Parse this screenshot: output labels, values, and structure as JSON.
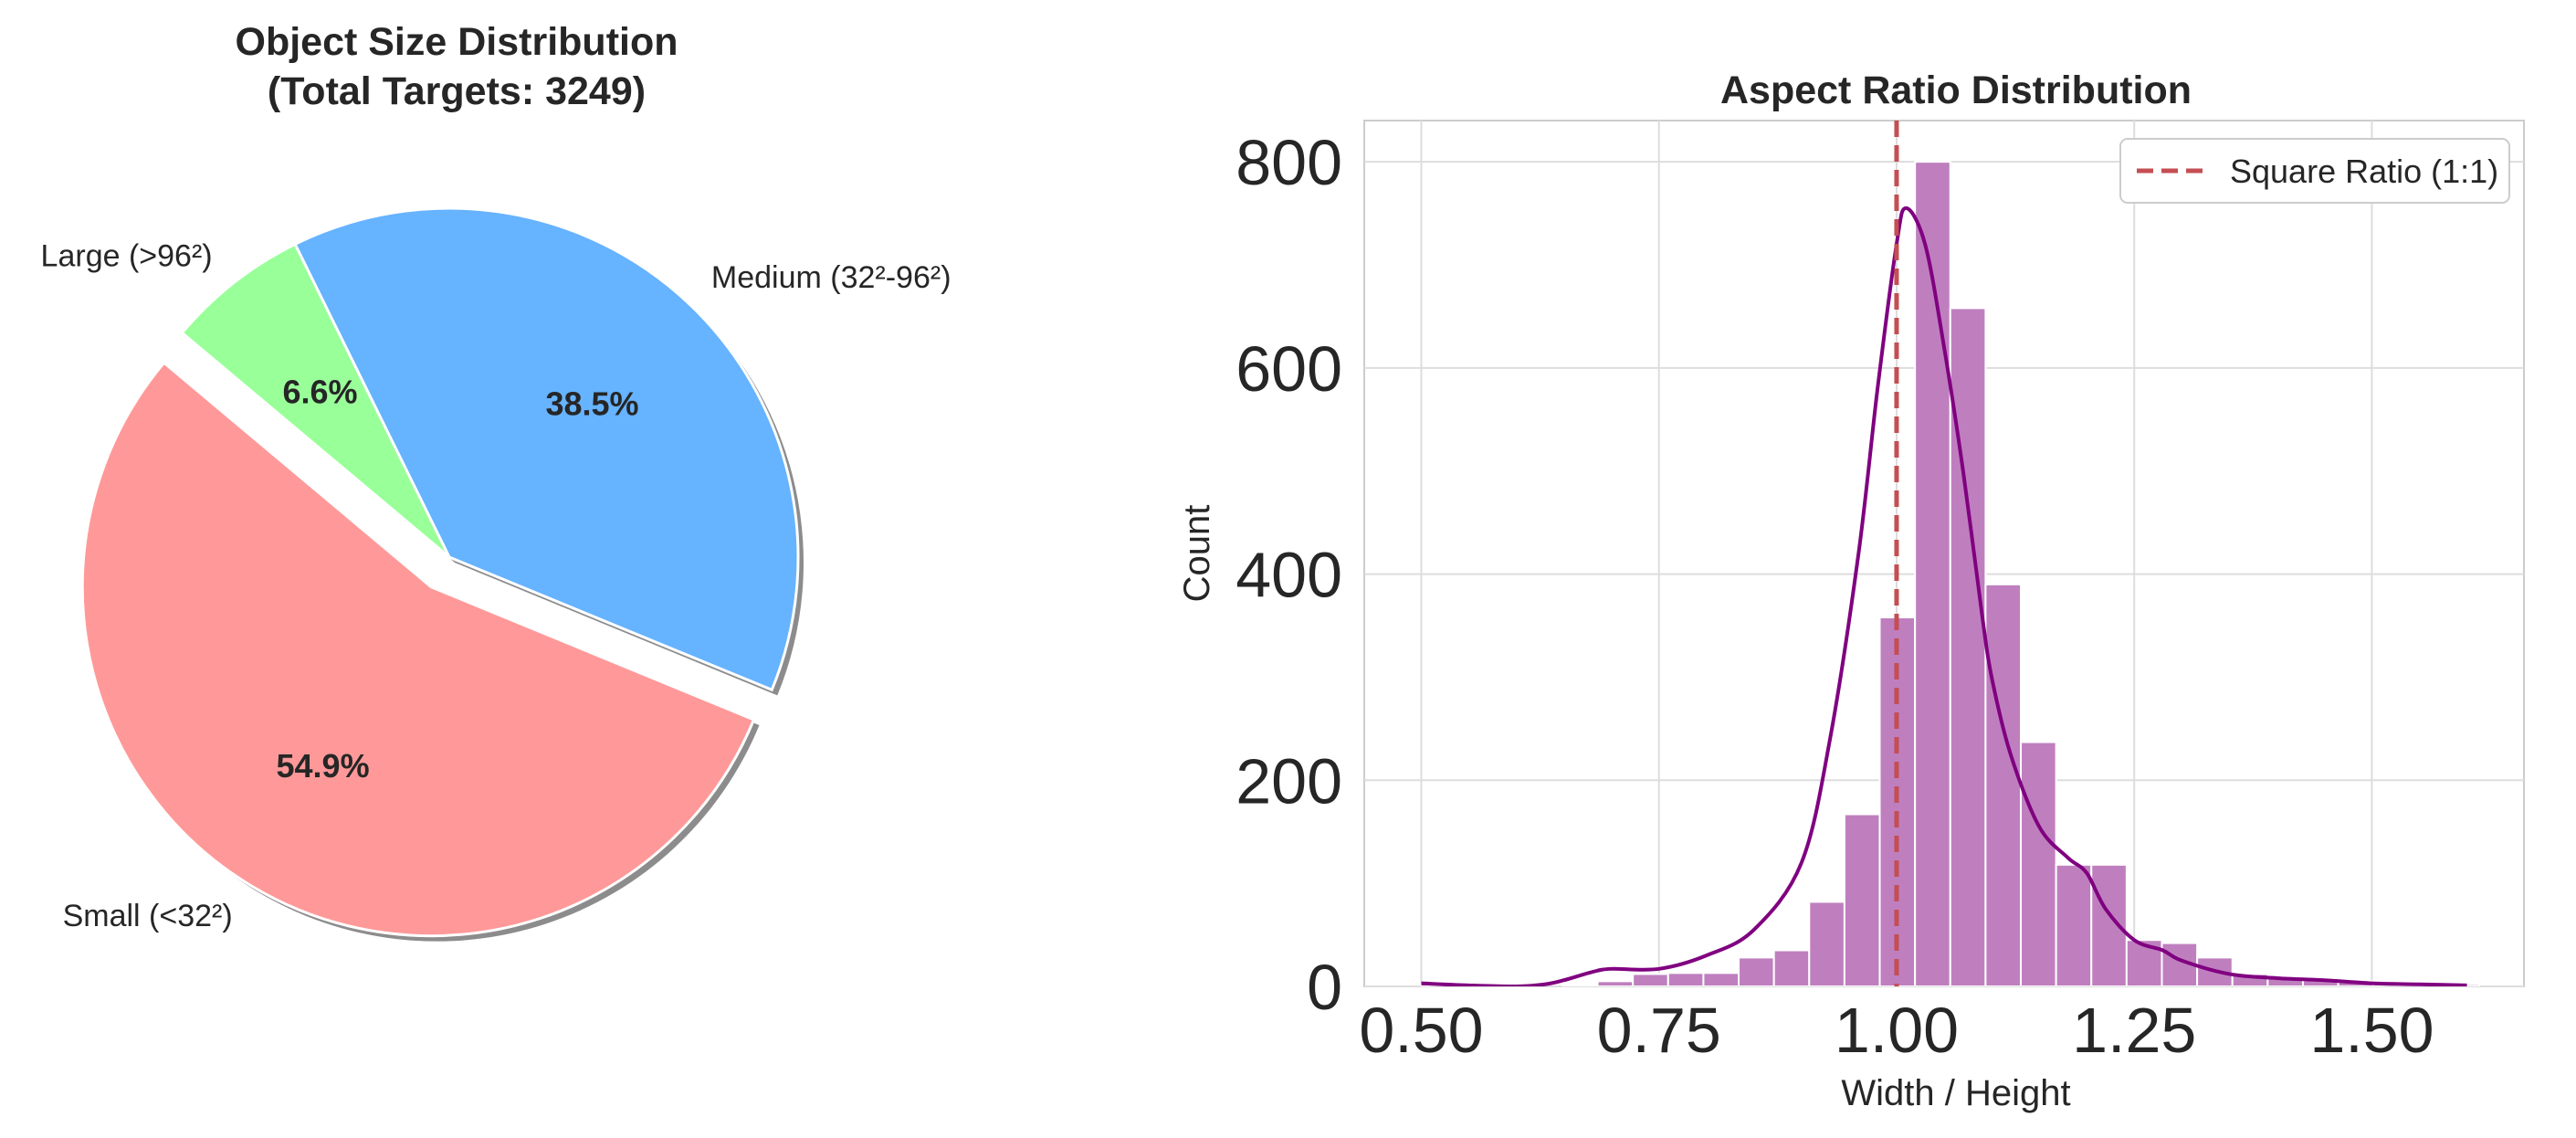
{
  "chart_data": [
    {
      "type": "pie",
      "title_line1": "Object Size Distribution",
      "title_line2": "(Total Targets: 3249)",
      "slices": [
        {
          "label": "Small (<32²)",
          "value": 54.9,
          "pct_label": "54.9%",
          "color": "#ff9999",
          "exploded": true
        },
        {
          "label": "Medium (32²-96²)",
          "value": 38.5,
          "pct_label": "38.5%",
          "color": "#66b3ff",
          "exploded": false
        },
        {
          "label": "Large (>96²)",
          "value": 6.6,
          "pct_label": "6.6%",
          "color": "#99ff99",
          "exploded": false
        }
      ],
      "start_angle_deg": 140,
      "shadow": true
    },
    {
      "type": "bar",
      "subtype": "histogram_with_kde",
      "title": "Aspect Ratio Distribution",
      "xlabel": "Width / Height",
      "ylabel": "Count",
      "xlim": [
        0.44,
        1.66
      ],
      "ylim": [
        0,
        840
      ],
      "xticks": [
        "0.50",
        "0.75",
        "1.00",
        "1.25",
        "1.50"
      ],
      "xtick_values": [
        0.5,
        0.75,
        1.0,
        1.25,
        1.5
      ],
      "yticks": [
        "0",
        "200",
        "400",
        "600",
        "800"
      ],
      "ytick_values": [
        0,
        200,
        400,
        600,
        800
      ],
      "bar_color": "#bf7fbf",
      "kde_color": "#800080",
      "bins": {
        "x_start": 0.5,
        "bin_width": 0.0371,
        "counts": [
          3,
          1,
          0,
          0,
          1,
          5,
          12,
          13,
          13,
          28,
          35,
          82,
          167,
          358,
          800,
          658,
          390,
          237,
          118,
          118,
          45,
          42,
          28,
          12,
          8,
          6,
          5,
          4,
          2,
          2
        ]
      },
      "kde": {
        "x": [
          0.5,
          0.55,
          0.6,
          0.63,
          0.65,
          0.68,
          0.7,
          0.75,
          0.8,
          0.85,
          0.9,
          0.93,
          0.96,
          0.98,
          1.0,
          1.01,
          1.03,
          1.05,
          1.07,
          1.09,
          1.1,
          1.12,
          1.15,
          1.18,
          1.2,
          1.22,
          1.25,
          1.28,
          1.3,
          1.35,
          1.4,
          1.45,
          1.5,
          1.55,
          1.6
        ],
        "y": [
          3,
          1,
          0,
          2,
          6,
          14,
          17,
          17,
          30,
          55,
          120,
          240,
          420,
          580,
          720,
          755,
          720,
          620,
          500,
          360,
          300,
          225,
          155,
          125,
          110,
          75,
          45,
          35,
          25,
          12,
          8,
          6,
          3,
          2,
          1
        ]
      },
      "reference_line": {
        "x": 1.0,
        "label": "Square Ratio (1:1)",
        "color": "#c44e52",
        "style": "dashed"
      },
      "legend_position": "upper right",
      "grid": true
    }
  ]
}
